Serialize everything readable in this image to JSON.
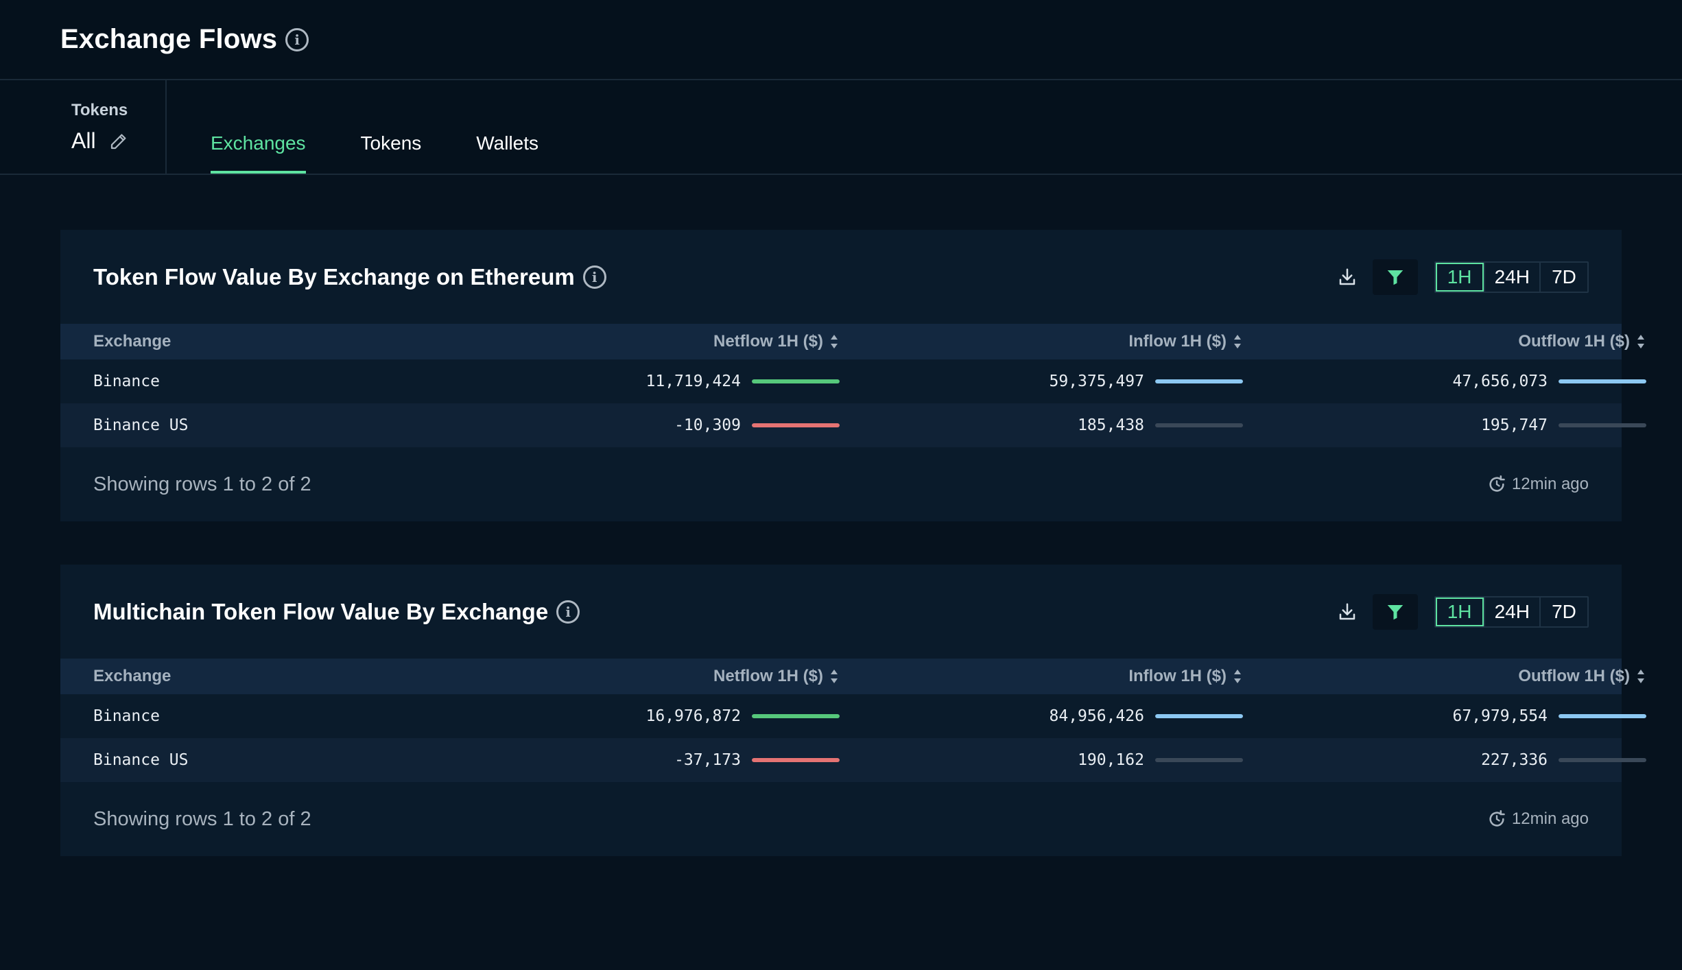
{
  "header": {
    "title": "Exchange Flows"
  },
  "token_filter": {
    "label": "Tokens",
    "value": "All"
  },
  "tabs": [
    {
      "label": "Exchanges",
      "active": true
    },
    {
      "label": "Tokens",
      "active": false
    },
    {
      "label": "Wallets",
      "active": false
    }
  ],
  "colors": {
    "accent": "#5ee3a1",
    "positive_bar": "#56c87b",
    "negative_bar": "#e57373",
    "neutral_bar": "#8cc8f2",
    "empty_track": "#3a4858"
  },
  "panels": [
    {
      "title": "Token Flow Value By Exchange on Ethereum",
      "ranges": [
        "1H",
        "24H",
        "7D"
      ],
      "active_range": "1H",
      "columns": [
        "Exchange",
        "Netflow 1H ($)",
        "Inflow 1H ($)",
        "Outflow 1H ($)"
      ],
      "rows": [
        {
          "exchange": "Binance",
          "netflow": "11,719,424",
          "inflow": "59,375,497",
          "outflow": "47,656,073"
        },
        {
          "exchange": "Binance US",
          "netflow": "-10,309",
          "inflow": "185,438",
          "outflow": "195,747"
        }
      ],
      "footer": {
        "rows_info": "Showing rows 1 to 2 of 2",
        "updated": "12min ago"
      }
    },
    {
      "title": "Multichain Token Flow Value By Exchange",
      "ranges": [
        "1H",
        "24H",
        "7D"
      ],
      "active_range": "1H",
      "columns": [
        "Exchange",
        "Netflow 1H ($)",
        "Inflow 1H ($)",
        "Outflow 1H ($)"
      ],
      "rows": [
        {
          "exchange": "Binance",
          "netflow": "16,976,872",
          "inflow": "84,956,426",
          "outflow": "67,979,554"
        },
        {
          "exchange": "Binance US",
          "netflow": "-37,173",
          "inflow": "190,162",
          "outflow": "227,336"
        }
      ],
      "footer": {
        "rows_info": "Showing rows 1 to 2 of 2",
        "updated": "12min ago"
      }
    }
  ],
  "icons": {
    "info": "info-icon",
    "edit": "pencil-icon",
    "download": "download-icon",
    "filter": "filter-icon",
    "sort": "sort-icon",
    "refresh": "refresh-icon"
  }
}
